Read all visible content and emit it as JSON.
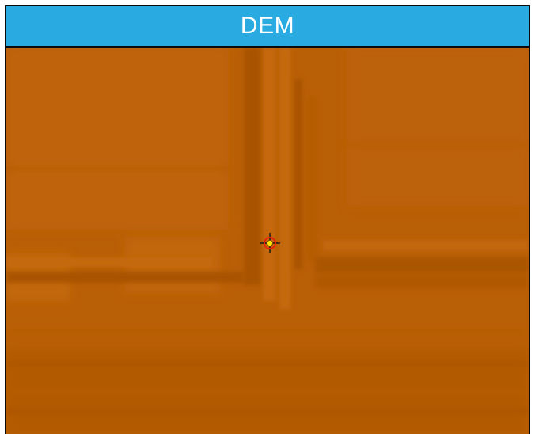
{
  "panel": {
    "title": "DEM",
    "title_bg_color": "#29abe2",
    "map_base_color": "#b95f06"
  },
  "cursor": {
    "icon": "crosshair-target-icon",
    "ring_color": "#e8200a",
    "center_color": "#ffe600"
  }
}
